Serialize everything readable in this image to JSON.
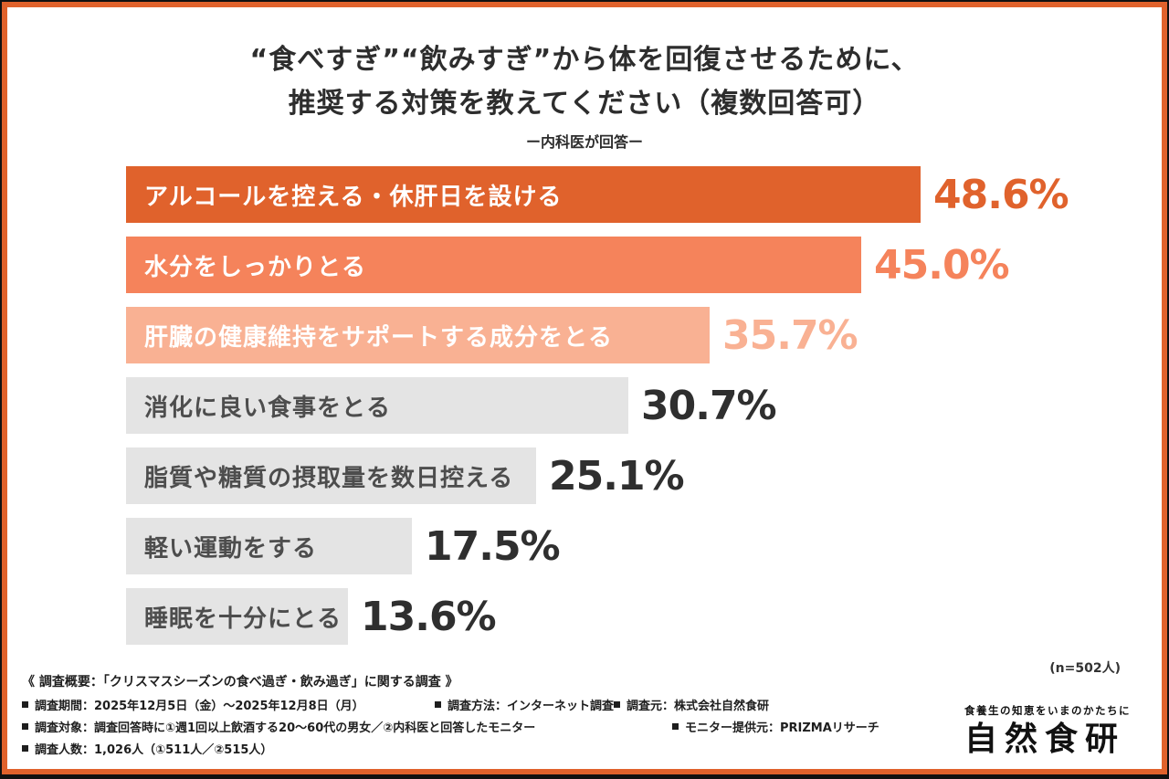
{
  "title": {
    "line1": "“食べすぎ”“飲みすぎ”から体を回復させるために、",
    "line2": "推奨する対策を教えてください（複数回答可）",
    "subtitle": "ー内科医が回答ー"
  },
  "chart_data": {
    "type": "bar",
    "orientation": "horizontal",
    "title": "“食べすぎ”“飲みすぎ”から体を回復させるために、推奨する対策を教えてください（複数回答可）ー内科医が回答ー",
    "categories": [
      "アルコールを控える・休肝日を設ける",
      "水分をしっかりとる",
      "肝臓の健康維持をサポートする成分をとる",
      "消化に良い食事をとる",
      "脂質や糖質の摂取量を数日控える",
      "軽い運動をする",
      "睡眠を十分にとる"
    ],
    "values": [
      48.6,
      45.0,
      35.7,
      30.7,
      25.1,
      17.5,
      13.6
    ],
    "value_labels": [
      "48.6%",
      "45.0%",
      "35.7%",
      "30.7%",
      "25.1%",
      "17.5%",
      "13.6%"
    ],
    "bar_colors": [
      "#e0622c",
      "#f5835b",
      "#f9b193",
      "#e4e4e4",
      "#e4e4e4",
      "#e4e4e4",
      "#e4e4e4"
    ],
    "label_colors": [
      "#ffffff",
      "#ffffff",
      "#ffffff",
      "#4d4d4d",
      "#4d4d4d",
      "#4d4d4d",
      "#4d4d4d"
    ],
    "value_colors": [
      "#e0622c",
      "#f5835b",
      "#f9b193",
      "#2f2f2f",
      "#2f2f2f",
      "#2f2f2f",
      "#2f2f2f"
    ],
    "xlim": [
      0,
      52
    ],
    "grid": false,
    "legend": "none",
    "sample_note": "(n=502人)"
  },
  "footer": {
    "heading": "《 調査概要：「クリスマスシーズンの食べ過ぎ・飲み過ぎ」に関する調査 》",
    "rows": [
      [
        "調査期間：2025年12月5日（金）～2025年12月8日（月）",
        "調査方法：インターネット調査",
        "調査元：株式会社自然食研"
      ],
      [
        "調査対象：調査回答時に①週1回以上飲酒する20～60代の男女／②内科医と回答したモニター",
        "モニター提供元：PRIZMAリサーチ"
      ],
      [
        "調査人数：1,026人（①511人／②515人）"
      ]
    ]
  },
  "logo": {
    "tagline": "食養生の知恵をいまのかたちに",
    "name": "自然食研"
  }
}
